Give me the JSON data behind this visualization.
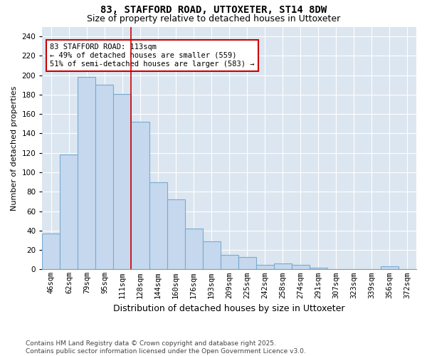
{
  "title": "83, STAFFORD ROAD, UTTOXETER, ST14 8DW",
  "subtitle": "Size of property relative to detached houses in Uttoxeter",
  "xlabel": "Distribution of detached houses by size in Uttoxeter",
  "ylabel": "Number of detached properties",
  "categories": [
    "46sqm",
    "62sqm",
    "79sqm",
    "95sqm",
    "111sqm",
    "128sqm",
    "144sqm",
    "160sqm",
    "176sqm",
    "193sqm",
    "209sqm",
    "225sqm",
    "242sqm",
    "258sqm",
    "274sqm",
    "291sqm",
    "307sqm",
    "323sqm",
    "339sqm",
    "356sqm",
    "372sqm"
  ],
  "values": [
    37,
    118,
    198,
    190,
    181,
    152,
    90,
    72,
    42,
    29,
    15,
    13,
    5,
    6,
    5,
    2,
    0,
    0,
    0,
    3,
    0
  ],
  "bar_color": "#c5d8ee",
  "bar_edge_color": "#7aaad0",
  "vline_color": "#cc0000",
  "vline_pos": 4.5,
  "annotation_text": "83 STAFFORD ROAD: 113sqm\n← 49% of detached houses are smaller (559)\n51% of semi-detached houses are larger (583) →",
  "annotation_box_color": "#ffffff",
  "annotation_box_edge": "#cc0000",
  "ylim": [
    0,
    250
  ],
  "yticks": [
    0,
    20,
    40,
    60,
    80,
    100,
    120,
    140,
    160,
    180,
    200,
    220,
    240
  ],
  "bg_color": "#dce6f0",
  "grid_color": "#ffffff",
  "footer": "Contains HM Land Registry data © Crown copyright and database right 2025.\nContains public sector information licensed under the Open Government Licence v3.0.",
  "title_fontsize": 10,
  "subtitle_fontsize": 9,
  "xlabel_fontsize": 9,
  "ylabel_fontsize": 8,
  "tick_fontsize": 7.5,
  "annotation_fontsize": 7.5,
  "footer_fontsize": 6.5
}
